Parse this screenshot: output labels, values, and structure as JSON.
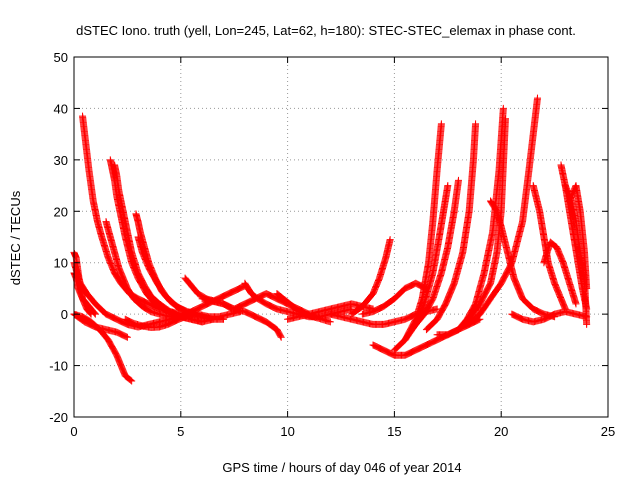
{
  "chart_data": {
    "type": "scatter",
    "title": "dSTEC Iono. truth (yell, Lon=245, Lat=62, h=180): STEC-STEC_elemax in phase cont.",
    "xlabel": "GPS time / hours of day 046 of year 2014",
    "ylabel": "dSTEC  / TECUs",
    "xlim": [
      0,
      25
    ],
    "ylim": [
      -20,
      50
    ],
    "xticks": [
      0,
      5,
      10,
      15,
      20,
      25
    ],
    "yticks": [
      -20,
      -10,
      0,
      10,
      20,
      30,
      40,
      50
    ],
    "xtick_labels": [
      "0",
      "5",
      "10",
      "15",
      "20",
      "25"
    ],
    "ytick_labels": [
      "-20",
      "-10",
      "0",
      "10",
      "20",
      "30",
      "40",
      "50"
    ],
    "grid": true,
    "marker": "plus",
    "color": "#ff0000",
    "series": [
      {
        "x": [
          0.0,
          0.1,
          0.2,
          0.3,
          0.4,
          0.6,
          0.8
        ],
        "y": [
          12,
          11,
          8,
          5,
          3,
          1,
          0
        ]
      },
      {
        "x": [
          0.0,
          0.1,
          0.2,
          0.4,
          0.6,
          0.8,
          1.0
        ],
        "y": [
          8,
          7,
          5,
          3,
          2,
          1,
          0
        ]
      },
      {
        "x": [
          0.0,
          0.3,
          0.6,
          1.0,
          1.5,
          2.0,
          2.5,
          3.0,
          3.5,
          4.0
        ],
        "y": [
          10,
          6,
          4,
          2,
          0,
          -1,
          -2,
          -2.5,
          -2,
          -1.5
        ]
      },
      {
        "x": [
          0.0,
          0.4,
          0.8,
          1.2,
          1.6,
          2.0,
          2.4,
          2.7
        ],
        "y": [
          0,
          -0.5,
          -1.5,
          -3,
          -5,
          -8,
          -12,
          -13
        ]
      },
      {
        "x": [
          0.0,
          0.5,
          1.0,
          1.5,
          2.0,
          2.5
        ],
        "y": [
          0,
          -1.5,
          -2.5,
          -3,
          -3.5,
          -4.5
        ]
      },
      {
        "x": [
          0.4,
          0.5,
          0.7,
          0.9,
          1.1,
          1.3,
          1.6,
          1.9,
          2.2,
          2.6,
          3.0,
          3.5,
          4.0,
          4.5,
          5.0
        ],
        "y": [
          38.5,
          35,
          28,
          22,
          18,
          15,
          11,
          8,
          6,
          4,
          3,
          2,
          1,
          0.5,
          0
        ]
      },
      {
        "x": [
          1.5,
          1.7,
          1.9,
          2.1,
          2.3,
          2.5,
          2.8,
          3.2,
          3.6,
          4.0,
          4.5,
          5.0,
          5.5
        ],
        "y": [
          18,
          15,
          12,
          9,
          7,
          5,
          3,
          1.5,
          0.5,
          0,
          -0.5,
          -0.5,
          0
        ]
      },
      {
        "x": [
          1.7,
          1.8,
          1.9,
          2.0,
          2.2,
          2.4,
          2.7,
          3.0,
          3.4,
          3.8,
          4.2,
          4.6,
          5.0,
          5.5,
          6.0
        ],
        "y": [
          30,
          28,
          26,
          23,
          19,
          15,
          10,
          7,
          4,
          2,
          1,
          0,
          -0.5,
          -1,
          -1.5
        ]
      },
      {
        "x": [
          1.9,
          2.0,
          2.1,
          2.3,
          2.5,
          2.7,
          3.0,
          3.3,
          3.6,
          4.0,
          4.5,
          5.0,
          5.5,
          6.0,
          6.5
        ],
        "y": [
          29,
          27,
          24,
          20,
          16,
          12,
          8,
          5.5,
          3.5,
          2,
          0.5,
          -0.5,
          -1,
          -1.5,
          -1
        ]
      },
      {
        "x": [
          2.9,
          3.0,
          3.1,
          3.3,
          3.5,
          3.8,
          4.1,
          4.5,
          5.0,
          5.5,
          6.0,
          6.5,
          7.0
        ],
        "y": [
          19.5,
          18,
          16,
          13,
          10,
          7,
          4.5,
          2.5,
          1,
          0,
          -0.5,
          -1,
          -1
        ]
      },
      {
        "x": [
          3.0,
          3.2,
          3.5,
          3.9,
          4.3,
          4.8,
          5.3,
          5.8,
          6.3,
          6.8,
          7.3,
          7.8
        ],
        "y": [
          15,
          12,
          9,
          6,
          3.5,
          1.5,
          0.5,
          0,
          -0.5,
          -0.5,
          0,
          0.5
        ]
      },
      {
        "x": [
          2.4,
          2.8,
          3.2,
          3.6,
          4.0,
          4.4,
          4.8,
          5.2,
          5.6
        ],
        "y": [
          -1,
          -1.8,
          -2.3,
          -2.6,
          -2.5,
          -2,
          -1.2,
          -0.5,
          0
        ]
      },
      {
        "x": [
          4.0,
          4.5,
          5.0,
          5.5,
          6.0,
          6.5,
          7.0,
          7.5,
          8.0
        ],
        "y": [
          -1.5,
          -1.0,
          -0.3,
          0.5,
          1.5,
          2.5,
          3.5,
          4.5,
          5.5
        ]
      },
      {
        "x": [
          5.2,
          5.5,
          5.8,
          6.2,
          6.6,
          7.0,
          7.4
        ],
        "y": [
          7,
          5.5,
          4,
          3,
          2.5,
          2,
          1
        ]
      },
      {
        "x": [
          6.0,
          6.5,
          7.0,
          7.5,
          8.0,
          8.5,
          9.0,
          9.5,
          9.7
        ],
        "y": [
          3,
          2.5,
          2,
          1,
          0.5,
          -0.5,
          -1.5,
          -3,
          -4.5
        ]
      },
      {
        "x": [
          7.5,
          8.0,
          8.5,
          9.0,
          9.5,
          10.0,
          10.5,
          11.0
        ],
        "y": [
          1,
          2,
          3,
          4,
          3,
          2,
          1,
          0
        ]
      },
      {
        "x": [
          8.0,
          8.3,
          8.6,
          9.0,
          9.5,
          10.0,
          10.5,
          11.0,
          11.5,
          12.0,
          12.5,
          13.0
        ],
        "y": [
          6,
          4,
          3,
          2,
          1,
          0.5,
          0,
          -0.5,
          -0.5,
          0,
          0.5,
          1
        ]
      },
      {
        "x": [
          9.5,
          9.8,
          10.1,
          10.4,
          10.8,
          11.2,
          11.6,
          12.0
        ],
        "y": [
          4,
          3,
          2,
          1,
          0,
          -0.5,
          -1,
          -1.5
        ]
      },
      {
        "x": [
          10.0,
          10.5,
          11.0,
          11.5,
          12.0,
          12.5,
          13.0,
          13.5,
          14.0
        ],
        "y": [
          -1,
          -0.5,
          0,
          0.5,
          1,
          1.5,
          2,
          1.5,
          1
        ]
      },
      {
        "x": [
          12.0,
          12.5,
          13.0,
          13.5,
          14.0,
          14.5,
          15.0,
          15.5,
          16.0,
          16.5,
          17.0
        ],
        "y": [
          0,
          -0.5,
          -1,
          -1.5,
          -2,
          -2,
          -1.5,
          -1,
          0,
          0.5,
          1
        ]
      },
      {
        "x": [
          13.0,
          13.5,
          14.0,
          14.3,
          14.6,
          14.8
        ],
        "y": [
          0,
          1.5,
          4,
          7,
          11,
          14.5
        ]
      },
      {
        "x": [
          13.5,
          14.0,
          14.5,
          15.0,
          15.5,
          16.0,
          16.5
        ],
        "y": [
          0,
          0.5,
          1.5,
          3,
          5,
          6,
          5
        ]
      },
      {
        "x": [
          14.0,
          14.5,
          15.0,
          15.5,
          16.0,
          16.5,
          17.0,
          17.5,
          18.0,
          18.5,
          19.0
        ],
        "y": [
          -6,
          -7,
          -8,
          -8,
          -7,
          -6,
          -5,
          -4,
          -3,
          -2,
          -1
        ]
      },
      {
        "x": [
          15.0,
          15.5,
          16.0,
          16.3,
          16.6,
          16.8,
          17.0,
          17.2
        ],
        "y": [
          -7,
          -5,
          -1,
          3,
          10,
          18,
          28,
          37
        ]
      },
      {
        "x": [
          15.5,
          16.0,
          16.4,
          16.8,
          17.1,
          17.3,
          17.5
        ],
        "y": [
          -5,
          -2,
          2,
          8,
          15,
          20,
          25
        ]
      },
      {
        "x": [
          16.0,
          16.4,
          16.8,
          17.2,
          17.5,
          17.8,
          18.0
        ],
        "y": [
          -2,
          0,
          3,
          8,
          13,
          20,
          26
        ]
      },
      {
        "x": [
          16.5,
          17.0,
          17.4,
          17.8,
          18.2,
          18.5,
          18.7,
          18.8
        ],
        "y": [
          -3,
          -1,
          2,
          6,
          12,
          20,
          30,
          37
        ]
      },
      {
        "x": [
          17.0,
          17.5,
          18.0,
          18.4,
          18.8,
          19.2,
          19.6,
          19.9,
          20.1
        ],
        "y": [
          -4,
          -4,
          -3,
          -1,
          2,
          8,
          16,
          28,
          40
        ]
      },
      {
        "x": [
          18.0,
          18.5,
          19.0,
          19.5,
          19.8,
          20.0,
          20.2
        ],
        "y": [
          -3,
          -1,
          2,
          6,
          12,
          20,
          38
        ]
      },
      {
        "x": [
          18.5,
          19.0,
          19.5,
          20.0,
          20.5,
          21.0,
          21.3,
          21.5,
          21.7
        ],
        "y": [
          -2,
          0,
          3,
          6,
          10,
          18,
          28,
          35,
          42
        ]
      },
      {
        "x": [
          19.5,
          19.8,
          20.0,
          20.3,
          20.6,
          21.0,
          21.5,
          22.0,
          22.5
        ],
        "y": [
          22,
          20,
          17,
          12,
          7,
          3,
          1,
          0,
          -0.5
        ]
      },
      {
        "x": [
          21.5,
          21.8,
          22.0,
          22.2,
          22.5,
          22.8,
          23.0
        ],
        "y": [
          25,
          20,
          15,
          10,
          6,
          3,
          1
        ]
      },
      {
        "x": [
          22.0,
          22.3,
          22.6,
          22.9,
          23.2,
          23.5
        ],
        "y": [
          10,
          14,
          13,
          10,
          6,
          2
        ]
      },
      {
        "x": [
          22.8,
          23.0,
          23.2,
          23.4,
          23.6,
          23.8,
          24.0
        ],
        "y": [
          29,
          25,
          20,
          15,
          10,
          5,
          1
        ]
      },
      {
        "x": [
          23.0,
          23.3,
          23.5,
          23.7,
          23.9,
          24.0
        ],
        "y": [
          25,
          22,
          18,
          12,
          7,
          -2
        ]
      },
      {
        "x": [
          23.2,
          23.5,
          23.7,
          23.9,
          24.0
        ],
        "y": [
          22,
          25,
          20,
          12,
          5
        ]
      },
      {
        "x": [
          20.5,
          21.0,
          21.5,
          22.0,
          22.5,
          23.0,
          23.5,
          24.0
        ],
        "y": [
          0,
          -1,
          -1.5,
          -1,
          0,
          0.5,
          0,
          -0.5
        ]
      }
    ]
  }
}
